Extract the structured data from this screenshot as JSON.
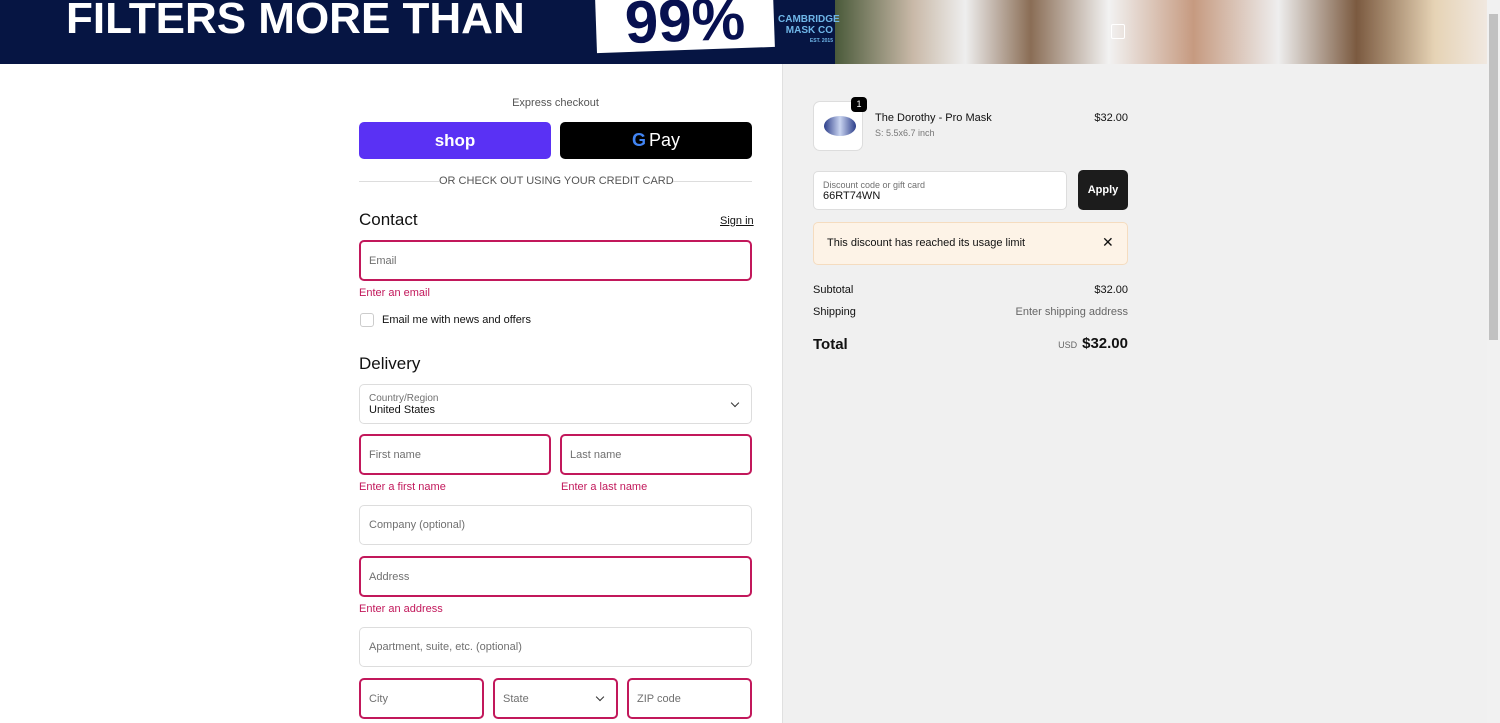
{
  "banner": {
    "headline": "FILTERS MORE THAN",
    "percent": "99%",
    "logo_line1": "CAMBRIDGE",
    "logo_line2": "MASK CO",
    "logo_est": "EST. 2015"
  },
  "express": {
    "label": "Express checkout",
    "shop": "shop",
    "gpay": "Pay",
    "divider": "OR CHECK OUT USING YOUR CREDIT CARD"
  },
  "contact": {
    "title": "Contact",
    "sign_in": "Sign in",
    "email_placeholder": "Email",
    "email_error": "Enter an email",
    "newsletter": "Email me with news and offers"
  },
  "delivery": {
    "title": "Delivery",
    "country_label": "Country/Region",
    "country_value": "United States",
    "first_name": "First name",
    "first_error": "Enter a first name",
    "last_name": "Last name",
    "last_error": "Enter a last name",
    "company": "Company (optional)",
    "address": "Address",
    "address_error": "Enter an address",
    "apartment": "Apartment, suite, etc. (optional)",
    "city": "City",
    "state": "State",
    "zip": "ZIP code"
  },
  "summary": {
    "item": {
      "name": "The Dorothy - Pro Mask",
      "variant": "S: 5.5x6.7 inch",
      "price": "$32.00",
      "quantity": "1"
    },
    "discount_label": "Discount code or gift card",
    "discount_value": "66RT74WN",
    "apply": "Apply",
    "notice": "This discount has reached its usage limit",
    "subtotal_label": "Subtotal",
    "subtotal": "$32.00",
    "shipping_label": "Shipping",
    "shipping": "Enter shipping address",
    "total_label": "Total",
    "currency": "USD",
    "total": "$32.00"
  },
  "colors": {
    "error": "#c2185b",
    "shop": "#5a31f4",
    "banner": "#061543"
  }
}
